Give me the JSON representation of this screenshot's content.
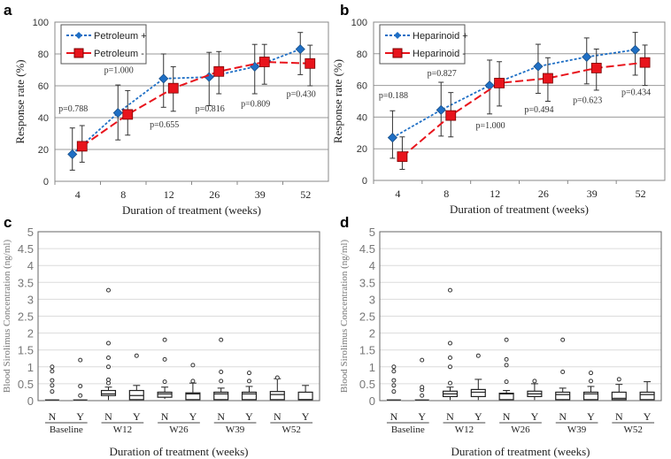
{
  "chart_data": [
    {
      "panel": "a",
      "type": "line",
      "xlabel": "Duration of treatment (weeks)",
      "ylabel": "Response rate (%)",
      "categories": [
        "4",
        "8",
        "12",
        "26",
        "39",
        "52"
      ],
      "ylim": [
        0,
        100
      ],
      "yticks": [
        0,
        20,
        40,
        60,
        80,
        100
      ],
      "grid": true,
      "legend": "top-left",
      "series": [
        {
          "name": "Petroleum +",
          "color": "#1f6fc5",
          "marker": "diamond",
          "values": [
            17,
            43,
            64.5,
            65.5,
            72,
            83
          ],
          "err_low": [
            7,
            26,
            46.5,
            47.5,
            55,
            67
          ],
          "err_high": [
            33.5,
            60.5,
            80,
            81,
            86,
            93.5
          ]
        },
        {
          "name": "Petroleum -",
          "color": "#e8141c",
          "marker": "square",
          "values": [
            22,
            42,
            58.5,
            69,
            75,
            74
          ],
          "err_low": [
            12,
            29,
            44,
            55,
            61,
            60
          ],
          "err_high": [
            35,
            57,
            72,
            81.5,
            86,
            85.5
          ]
        }
      ],
      "annotations": [
        {
          "text": "p=0.788",
          "category": 0,
          "y": 44
        },
        {
          "text": "p=1.000",
          "category": 1,
          "y": 68
        },
        {
          "text": "p=0.655",
          "category": 2,
          "y": 34
        },
        {
          "text": "p=0.816",
          "category": 3,
          "y": 44
        },
        {
          "text": "p=0.809",
          "category": 4,
          "y": 47
        },
        {
          "text": "p=0.430",
          "category": 5,
          "y": 53
        }
      ]
    },
    {
      "panel": "b",
      "type": "line",
      "xlabel": "Duration of treatment (weeks)",
      "ylabel": "Response rate (%)",
      "categories": [
        "4",
        "8",
        "12",
        "26",
        "39",
        "52"
      ],
      "ylim": [
        0,
        100
      ],
      "yticks": [
        0,
        20,
        40,
        60,
        80,
        100
      ],
      "grid": true,
      "legend": "top-left",
      "series": [
        {
          "name": "Heparinoid +",
          "color": "#1f6fc5",
          "marker": "diamond",
          "values": [
            27,
            44.5,
            60,
            72,
            78,
            82.5
          ],
          "err_low": [
            14,
            28,
            42,
            55,
            61,
            66.5
          ],
          "err_high": [
            44,
            62,
            76,
            86,
            90,
            93.5
          ]
        },
        {
          "name": "Heparinoid -",
          "color": "#e8141c",
          "marker": "square",
          "values": [
            15,
            41,
            61.5,
            64.5,
            71,
            74.5
          ],
          "err_low": [
            7,
            27.5,
            47,
            50,
            57,
            60
          ],
          "err_high": [
            27.5,
            55.5,
            75,
            77.5,
            83,
            85.5
          ]
        }
      ],
      "annotations": [
        {
          "text": "p=0.188",
          "category": 0,
          "y": 52
        },
        {
          "text": "p=0.827",
          "category": 1,
          "y": 66
        },
        {
          "text": "p=1.000",
          "category": 2,
          "y": 33
        },
        {
          "text": "p=0.494",
          "category": 3,
          "y": 43
        },
        {
          "text": "p=0.623",
          "category": 4,
          "y": 49
        },
        {
          "text": "p=0.434",
          "category": 5,
          "y": 54
        }
      ]
    },
    {
      "panel": "c",
      "type": "box",
      "xlabel": "Duration of treatment (weeks)",
      "ylabel": "Blood Sirolimus Concentration (ng/ml)",
      "ylim": [
        0,
        5
      ],
      "yticks": [
        "0",
        "0.5",
        "1",
        "1.5",
        "2",
        "2.5",
        "3",
        "3.5",
        "4",
        "4.5",
        "5"
      ],
      "grid": true,
      "groups": [
        "Baseline",
        "W12",
        "W26",
        "W39",
        "W52"
      ],
      "subgroups": [
        "N",
        "Y"
      ],
      "boxes": [
        {
          "group": "Baseline",
          "sub": "N",
          "stats": [
            0.02,
            0.02,
            0.02,
            0.02,
            0.02
          ],
          "outliers": [
            0.27,
            0.45,
            0.6,
            0.87,
            1.0
          ]
        },
        {
          "group": "Baseline",
          "sub": "Y",
          "stats": [
            0.02,
            0.02,
            0.02,
            0.02,
            0.02
          ],
          "outliers": [
            0.15,
            0.43,
            1.2
          ]
        },
        {
          "group": "W12",
          "sub": "N",
          "stats": [
            0.02,
            0.15,
            0.2,
            0.3,
            0.4
          ],
          "outliers": [
            0.52,
            0.62,
            1.0,
            1.27,
            1.7,
            3.27
          ]
        },
        {
          "group": "W12",
          "sub": "Y",
          "stats": [
            0.02,
            0.03,
            0.15,
            0.3,
            0.45
          ],
          "outliers": [
            1.33
          ]
        },
        {
          "group": "W26",
          "sub": "N",
          "stats": [
            0.05,
            0.1,
            0.2,
            0.25,
            0.4
          ],
          "outliers": [
            0.56,
            1.22,
            1.8
          ]
        },
        {
          "group": "W26",
          "sub": "Y",
          "stats": [
            0.02,
            0.03,
            0.2,
            0.23,
            0.52
          ],
          "outliers": [
            0.58,
            1.05
          ]
        },
        {
          "group": "W39",
          "sub": "N",
          "stats": [
            0.02,
            0.03,
            0.2,
            0.25,
            0.37
          ],
          "outliers": [
            0.58,
            0.85,
            1.8
          ]
        },
        {
          "group": "W39",
          "sub": "Y",
          "stats": [
            0.02,
            0.03,
            0.2,
            0.25,
            0.42
          ],
          "outliers": [
            0.58,
            0.82
          ]
        },
        {
          "group": "W52",
          "sub": "N",
          "stats": [
            0.02,
            0.03,
            0.18,
            0.27,
            0.65
          ],
          "outliers": [
            0.68
          ]
        },
        {
          "group": "W52",
          "sub": "Y",
          "stats": [
            0.02,
            0.03,
            0.03,
            0.25,
            0.45
          ],
          "outliers": []
        }
      ]
    },
    {
      "panel": "d",
      "type": "box",
      "xlabel": "Duration of treatment (weeks)",
      "ylabel": "Blood Sirolimus Concentration (ng/ml)",
      "ylim": [
        0,
        5
      ],
      "yticks": [
        "0",
        "0.5",
        "1",
        "1.5",
        "2",
        "2.5",
        "3",
        "3.5",
        "4",
        "4.5",
        "5"
      ],
      "grid": true,
      "groups": [
        "Baseline",
        "W12",
        "W26",
        "W39",
        "W52"
      ],
      "subgroups": [
        "N",
        "Y"
      ],
      "boxes": [
        {
          "group": "Baseline",
          "sub": "N",
          "stats": [
            0.02,
            0.02,
            0.02,
            0.02,
            0.02
          ],
          "outliers": [
            0.27,
            0.45,
            0.6,
            0.87,
            1.0
          ]
        },
        {
          "group": "Baseline",
          "sub": "Y",
          "stats": [
            0.02,
            0.02,
            0.02,
            0.02,
            0.02
          ],
          "outliers": [
            0.15,
            0.32,
            0.4,
            1.2
          ]
        },
        {
          "group": "W12",
          "sub": "N",
          "stats": [
            0.02,
            0.12,
            0.2,
            0.28,
            0.4
          ],
          "outliers": [
            0.52,
            1.0,
            1.27,
            1.7,
            3.27
          ]
        },
        {
          "group": "W12",
          "sub": "Y",
          "stats": [
            0.02,
            0.12,
            0.25,
            0.33,
            0.63
          ],
          "outliers": [
            1.33
          ]
        },
        {
          "group": "W26",
          "sub": "N",
          "stats": [
            0.02,
            0.03,
            0.2,
            0.22,
            0.3
          ],
          "outliers": [
            0.56,
            1.05,
            1.22,
            1.8
          ]
        },
        {
          "group": "W26",
          "sub": "Y",
          "stats": [
            0.02,
            0.12,
            0.2,
            0.28,
            0.5
          ],
          "outliers": [
            0.58
          ]
        },
        {
          "group": "W39",
          "sub": "N",
          "stats": [
            0.02,
            0.03,
            0.18,
            0.25,
            0.37
          ],
          "outliers": [
            0.85,
            1.8
          ]
        },
        {
          "group": "W39",
          "sub": "Y",
          "stats": [
            0.02,
            0.03,
            0.2,
            0.25,
            0.42
          ],
          "outliers": [
            0.58,
            0.82
          ]
        },
        {
          "group": "W52",
          "sub": "N",
          "stats": [
            0.02,
            0.03,
            0.07,
            0.25,
            0.48
          ],
          "outliers": [
            0.63
          ]
        },
        {
          "group": "W52",
          "sub": "Y",
          "stats": [
            0.02,
            0.03,
            0.18,
            0.25,
            0.56
          ],
          "outliers": []
        }
      ]
    }
  ]
}
